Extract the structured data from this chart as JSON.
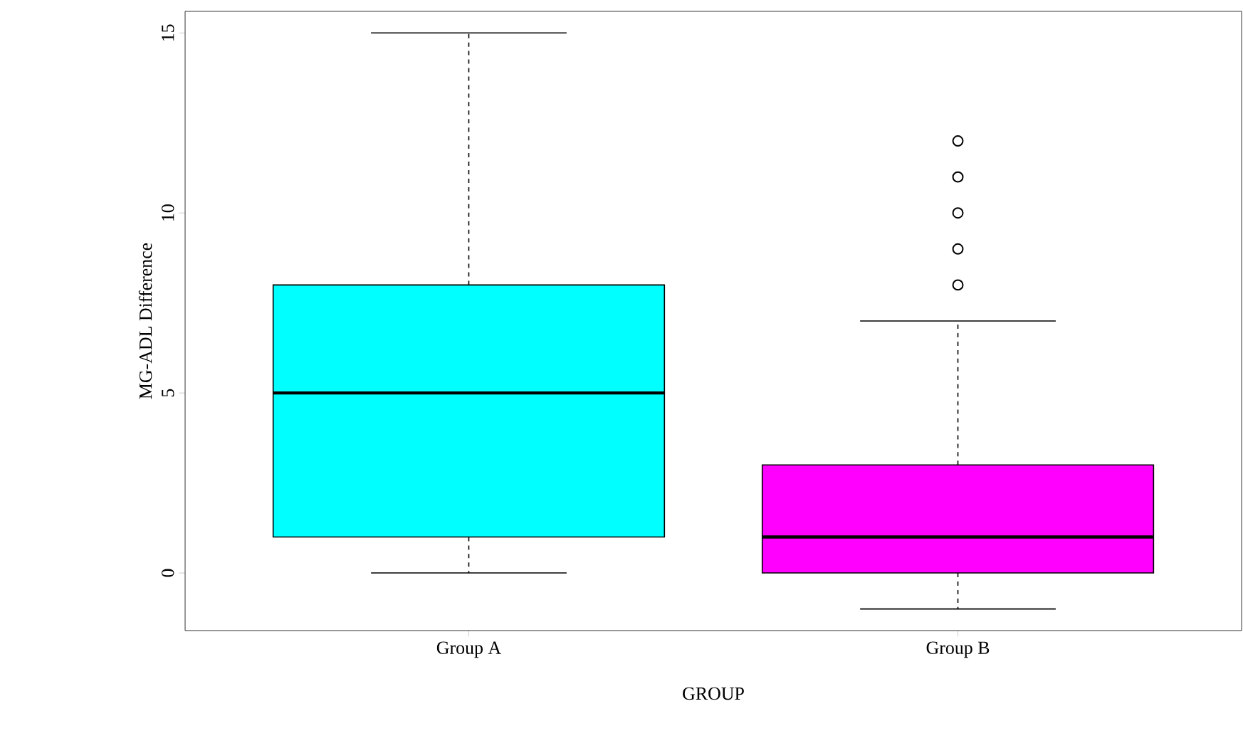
{
  "chart_data": {
    "type": "box",
    "xlabel": "GROUP",
    "ylabel": "MG-ADL Difference",
    "categories": [
      "Group A",
      "Group B"
    ],
    "colors": [
      "#00ffff",
      "#ff00ff"
    ],
    "boxes": [
      {
        "low": 0,
        "q1": 1,
        "median": 5,
        "q3": 8,
        "high": 15
      },
      {
        "low": -1,
        "q1": 0,
        "median": 1,
        "q3": 3,
        "high": 7,
        "outliers": [
          8,
          9,
          10,
          11,
          12
        ]
      }
    ],
    "ylim": [
      -1.6,
      15.6
    ],
    "yticks": [
      0,
      5,
      10,
      15
    ]
  }
}
